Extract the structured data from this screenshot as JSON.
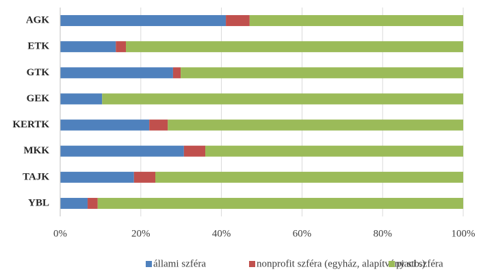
{
  "chart_data": {
    "type": "bar",
    "orientation": "horizontal",
    "stacked": true,
    "categories": [
      "AGK",
      "ETK",
      "GTK",
      "GEK",
      "KERTK",
      "MKK",
      "TAJK",
      "YBL"
    ],
    "series": [
      {
        "name": "állami szféra",
        "color": "#4f81bd",
        "values": [
          41.1,
          13.8,
          28.0,
          10.4,
          22.1,
          30.7,
          18.3,
          6.8
        ]
      },
      {
        "name": "nonprofit szféra (egyház, alapítvány stb.)",
        "color": "#c0504d",
        "values": [
          5.9,
          2.5,
          1.9,
          0,
          4.6,
          5.3,
          5.3,
          2.5
        ]
      },
      {
        "name": "piaci szféra",
        "color": "#9bbb59",
        "values": [
          53.0,
          83.7,
          70.1,
          89.6,
          73.3,
          64.0,
          76.4,
          90.7
        ]
      }
    ],
    "xlim": [
      0,
      100
    ],
    "xticks": [
      {
        "value": 0,
        "label": "0%"
      },
      {
        "value": 20,
        "label": "20%"
      },
      {
        "value": 40,
        "label": "40%"
      },
      {
        "value": 60,
        "label": "60%"
      },
      {
        "value": 80,
        "label": "80%"
      },
      {
        "value": 100,
        "label": "100%"
      }
    ],
    "grid": true,
    "legend": "bottom"
  }
}
